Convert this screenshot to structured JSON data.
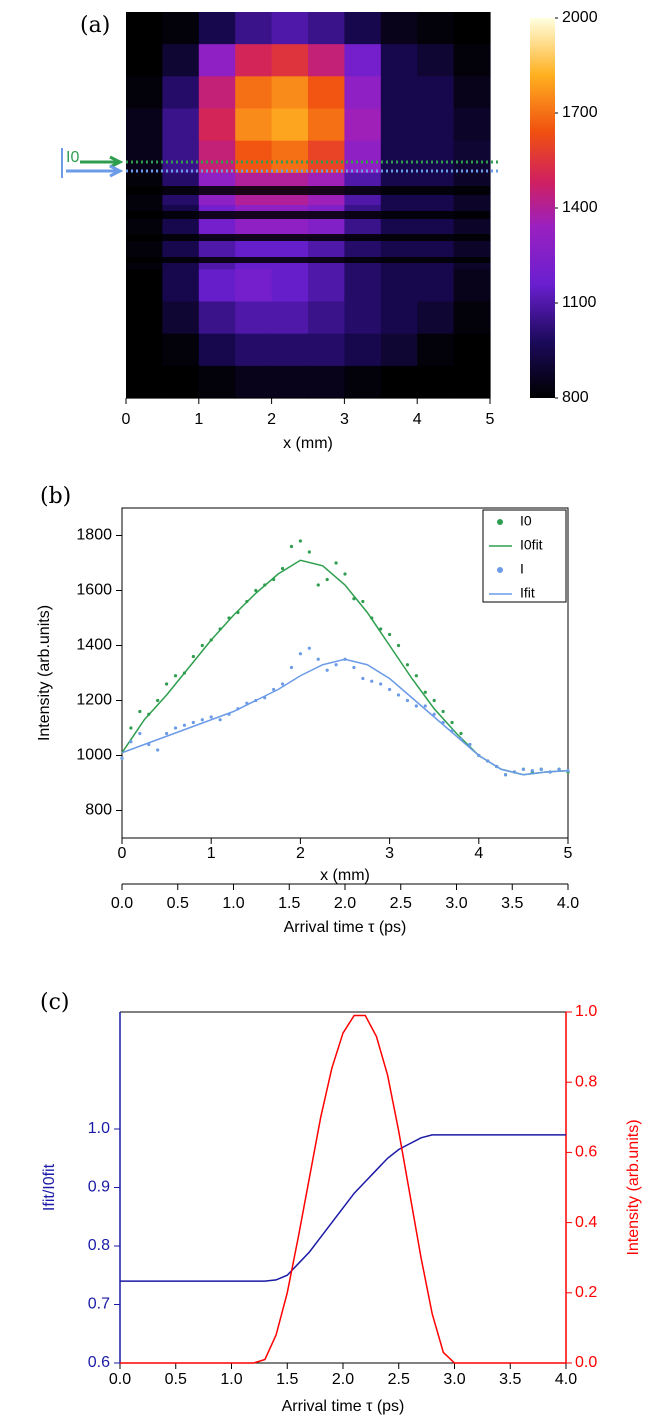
{
  "chart_data": [
    {
      "type": "heatmap",
      "panel_label": "(a)",
      "xlabel": "x (mm)",
      "xlim": [
        0,
        5
      ],
      "xticks": [
        0,
        1,
        2,
        3,
        4,
        5
      ],
      "annotation": "I0",
      "annotation_colors": [
        "#2e9e4e",
        "#6c9be8"
      ],
      "z": [
        [
          800,
          820,
          950,
          1050,
          1100,
          1050,
          950,
          850,
          820,
          800
        ],
        [
          800,
          900,
          1300,
          1500,
          1550,
          1450,
          1200,
          950,
          900,
          820
        ],
        [
          820,
          1000,
          1450,
          1700,
          1750,
          1650,
          1300,
          950,
          950,
          850
        ],
        [
          850,
          1050,
          1500,
          1750,
          1800,
          1700,
          1350,
          950,
          950,
          880
        ],
        [
          850,
          1050,
          1450,
          1650,
          1700,
          1600,
          1300,
          950,
          950,
          900
        ],
        [
          820,
          1000,
          1300,
          1400,
          1400,
          1350,
          1100,
          950,
          950,
          880
        ],
        [
          820,
          950,
          1200,
          1300,
          1300,
          1250,
          1050,
          950,
          950,
          880
        ],
        [
          820,
          950,
          1100,
          1150,
          1150,
          1100,
          1000,
          950,
          950,
          880
        ],
        [
          800,
          950,
          1150,
          1200,
          1150,
          1100,
          1000,
          950,
          950,
          850
        ],
        [
          800,
          900,
          1050,
          1100,
          1100,
          1050,
          1000,
          950,
          900,
          820
        ],
        [
          800,
          820,
          950,
          1000,
          1000,
          1000,
          950,
          900,
          820,
          800
        ],
        [
          800,
          800,
          820,
          850,
          850,
          850,
          820,
          800,
          800,
          800
        ]
      ],
      "colorbar": {
        "lim": [
          800,
          2000
        ],
        "ticks": [
          800,
          1100,
          1400,
          1700,
          2000
        ]
      }
    },
    {
      "type": "scatter",
      "panel_label": "(b)",
      "xlabel": "x (mm)",
      "ylabel": "Intensity (arb.units)",
      "xlim": [
        0,
        5
      ],
      "xticks": [
        0,
        1,
        2,
        3,
        4,
        5
      ],
      "ylim": [
        700,
        1900
      ],
      "yticks": [
        800,
        1000,
        1200,
        1400,
        1600,
        1800
      ],
      "x2label": "Arrival time τ (ps)",
      "x2lim": [
        0,
        4
      ],
      "x2ticks": [
        {
          "value": 0,
          "label": "0.0"
        },
        0.5,
        {
          "value": 1,
          "label": "1.0"
        },
        1.5,
        {
          "value": 2,
          "label": "2.0"
        },
        2.5,
        {
          "value": 3,
          "label": "3.0"
        },
        3.5,
        {
          "value": 4,
          "label": "4.0"
        }
      ],
      "series": [
        {
          "name": "I0",
          "color": "#2e9e4e",
          "mode": "markers",
          "x": [
            0,
            0.1,
            0.2,
            0.3,
            0.4,
            0.5,
            0.6,
            0.7,
            0.8,
            0.9,
            1,
            1.1,
            1.2,
            1.3,
            1.4,
            1.5,
            1.6,
            1.7,
            1.8,
            1.9,
            2,
            2.1,
            2.2,
            2.3,
            2.4,
            2.5,
            2.6,
            2.7,
            2.8,
            2.9,
            3,
            3.1,
            3.2,
            3.3,
            3.4,
            3.5,
            3.6,
            3.7,
            3.8,
            3.9,
            4,
            4.1,
            4.2,
            4.3,
            4.4,
            4.5,
            4.6,
            4.7,
            4.8,
            4.9,
            5
          ],
          "values": [
            990,
            1100,
            1160,
            1150,
            1200,
            1260,
            1290,
            1300,
            1360,
            1400,
            1420,
            1460,
            1500,
            1520,
            1560,
            1600,
            1620,
            1640,
            1680,
            1760,
            1780,
            1740,
            1620,
            1640,
            1700,
            1660,
            1570,
            1560,
            1500,
            1460,
            1440,
            1400,
            1330,
            1290,
            1230,
            1200,
            1160,
            1120,
            1080,
            1040,
            1000,
            980,
            960,
            930,
            940,
            950,
            940,
            950,
            940,
            950,
            940
          ]
        },
        {
          "name": "I0fit",
          "color": "#2e9e4e",
          "mode": "line",
          "x": [
            0,
            0.25,
            0.5,
            0.75,
            1,
            1.25,
            1.5,
            1.75,
            2,
            2.25,
            2.5,
            2.75,
            3,
            3.25,
            3.5,
            3.75,
            4,
            4.25,
            4.5,
            4.75,
            5
          ],
          "values": [
            1010,
            1130,
            1220,
            1320,
            1420,
            1510,
            1590,
            1660,
            1710,
            1690,
            1620,
            1520,
            1400,
            1280,
            1170,
            1080,
            1000,
            950,
            930,
            940,
            945
          ]
        },
        {
          "name": "I",
          "color": "#6c9be8",
          "mode": "markers",
          "x": [
            0,
            0.1,
            0.2,
            0.3,
            0.4,
            0.5,
            0.6,
            0.7,
            0.8,
            0.9,
            1,
            1.1,
            1.2,
            1.3,
            1.4,
            1.5,
            1.6,
            1.7,
            1.8,
            1.9,
            2,
            2.1,
            2.2,
            2.3,
            2.4,
            2.5,
            2.6,
            2.7,
            2.8,
            2.9,
            3,
            3.1,
            3.2,
            3.3,
            3.4,
            3.5,
            3.6,
            3.7,
            3.8,
            3.9,
            4,
            4.1,
            4.2,
            4.3,
            4.4,
            4.5,
            4.6,
            4.7,
            4.8,
            4.9,
            5
          ],
          "values": [
            990,
            1050,
            1080,
            1040,
            1020,
            1080,
            1100,
            1110,
            1120,
            1130,
            1140,
            1130,
            1150,
            1170,
            1190,
            1200,
            1210,
            1240,
            1260,
            1320,
            1370,
            1390,
            1350,
            1310,
            1330,
            1350,
            1320,
            1280,
            1270,
            1260,
            1240,
            1220,
            1200,
            1180,
            1180,
            1150,
            1120,
            1090,
            1060,
            1040,
            1000,
            980,
            960,
            930,
            940,
            950,
            945,
            950,
            940,
            950,
            945
          ]
        },
        {
          "name": "Ifit",
          "color": "#6c9be8",
          "mode": "line",
          "x": [
            0,
            0.25,
            0.5,
            0.75,
            1,
            1.25,
            1.5,
            1.75,
            2,
            2.25,
            2.5,
            2.75,
            3,
            3.25,
            3.5,
            3.75,
            4,
            4.25,
            4.5,
            4.75,
            5
          ],
          "values": [
            1010,
            1040,
            1070,
            1100,
            1130,
            1160,
            1200,
            1240,
            1290,
            1330,
            1350,
            1330,
            1280,
            1210,
            1140,
            1070,
            1000,
            950,
            930,
            940,
            945
          ]
        }
      ]
    },
    {
      "type": "line",
      "panel_label": "(c)",
      "xlabel": "Arrival time τ (ps)",
      "ylabel": "Ifit/I0fit",
      "y2label": "Intensity (arb.units)",
      "xlim": [
        0,
        4
      ],
      "xticks": [
        {
          "value": 0,
          "label": "0.0"
        },
        0.5,
        {
          "value": 1,
          "label": "1.0"
        },
        1.5,
        {
          "value": 2,
          "label": "2.0"
        },
        2.5,
        {
          "value": 3,
          "label": "3.0"
        },
        3.5,
        {
          "value": 4,
          "label": "4.0"
        }
      ],
      "ylim": [
        0.6,
        1.2
      ],
      "yticks": [
        0.6,
        0.7,
        0.8,
        0.9,
        {
          "value": 1,
          "label": "1.0"
        }
      ],
      "y2lim": [
        0,
        1
      ],
      "y2ticks": [
        {
          "value": 0,
          "label": "0.0"
        },
        0.2,
        0.4,
        0.6,
        0.8,
        {
          "value": 1,
          "label": "1.0"
        }
      ],
      "y_color": "#1a1aa6",
      "y2_color": "#ff0000",
      "x": [
        0,
        0.1,
        0.2,
        0.3,
        0.4,
        0.5,
        0.6,
        0.7,
        0.8,
        0.9,
        1,
        1.1,
        1.2,
        1.3,
        1.4,
        1.5,
        1.6,
        1.7,
        1.8,
        1.9,
        2,
        2.1,
        2.2,
        2.3,
        2.4,
        2.5,
        2.6,
        2.7,
        2.8,
        2.9,
        3,
        3.1,
        3.2,
        3.3,
        3.4,
        3.5,
        3.6,
        3.7,
        3.8,
        3.9,
        4
      ],
      "series": [
        {
          "color": "#1a1aa6",
          "axis": "y",
          "values": [
            0.74,
            0.74,
            0.74,
            0.74,
            0.74,
            0.74,
            0.74,
            0.74,
            0.74,
            0.74,
            0.74,
            0.74,
            0.74,
            0.74,
            0.742,
            0.75,
            0.77,
            0.79,
            0.815,
            0.84,
            0.865,
            0.89,
            0.91,
            0.93,
            0.95,
            0.965,
            0.975,
            0.985,
            0.99,
            0.99,
            0.99,
            0.99,
            0.99,
            0.99,
            0.99,
            0.99,
            0.99,
            0.99,
            0.99,
            0.99,
            0.99
          ]
        },
        {
          "color": "#ff0000",
          "axis": "y2",
          "values": [
            0,
            0,
            0,
            0,
            0,
            0,
            0,
            0,
            0,
            0,
            0,
            0,
            0,
            0.01,
            0.08,
            0.2,
            0.36,
            0.53,
            0.7,
            0.84,
            0.94,
            0.99,
            0.99,
            0.93,
            0.82,
            0.66,
            0.48,
            0.3,
            0.14,
            0.03,
            0,
            0,
            0,
            0,
            0,
            0,
            0,
            0,
            0,
            0,
            0
          ]
        }
      ]
    }
  ]
}
